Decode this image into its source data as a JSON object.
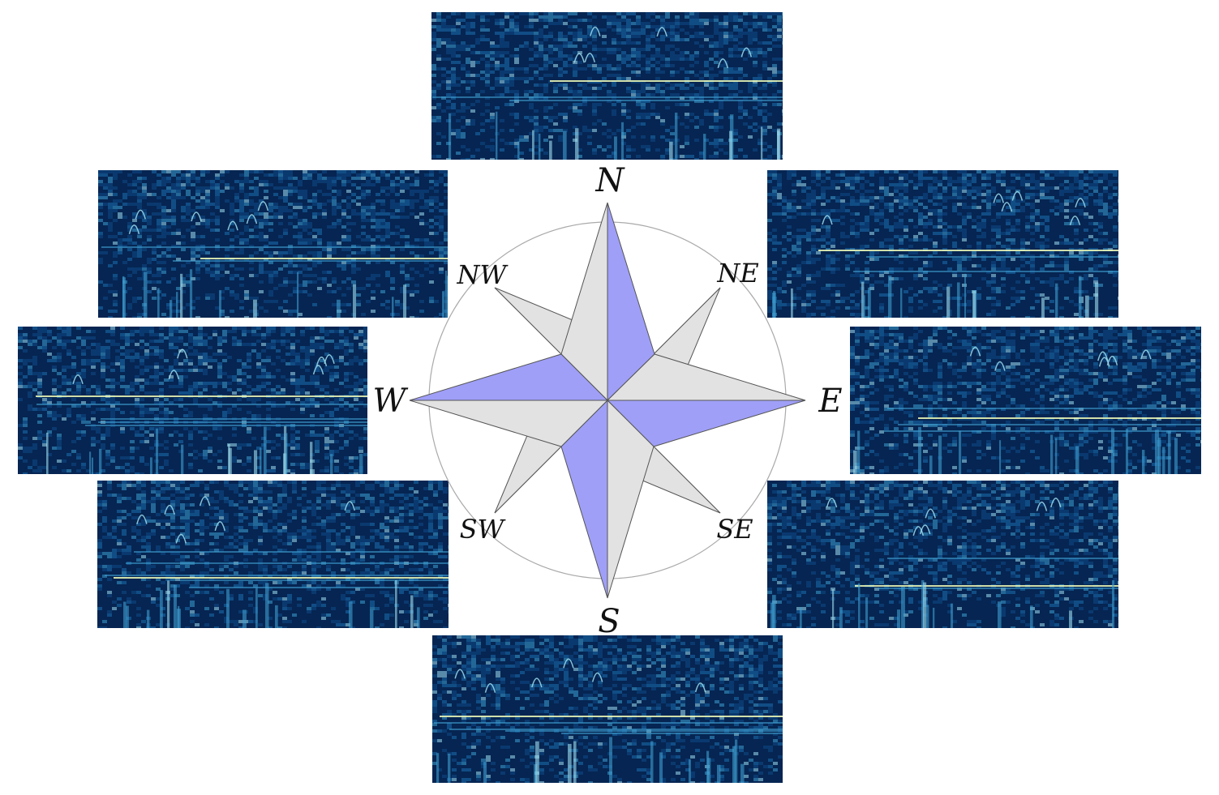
{
  "compass": {
    "labels": {
      "n": "N",
      "ne": "NE",
      "e": "E",
      "se": "SE",
      "s": "S",
      "sw": "SW",
      "w": "W",
      "nw": "NW"
    },
    "colors": {
      "point_blue": "#9f9ff8",
      "point_gray": "#e2e2e2",
      "outline": "#555555",
      "ring": "#aaaaaa"
    }
  },
  "spectrograms": {
    "background": "#0a2f5c",
    "palette": [
      "#062552",
      "#0f4a86",
      "#1b6fae",
      "#3d9fd0",
      "#9fdff0",
      "#f4ffb8"
    ],
    "panels": [
      "n",
      "ne",
      "e",
      "se",
      "s",
      "sw",
      "w",
      "nw"
    ]
  }
}
